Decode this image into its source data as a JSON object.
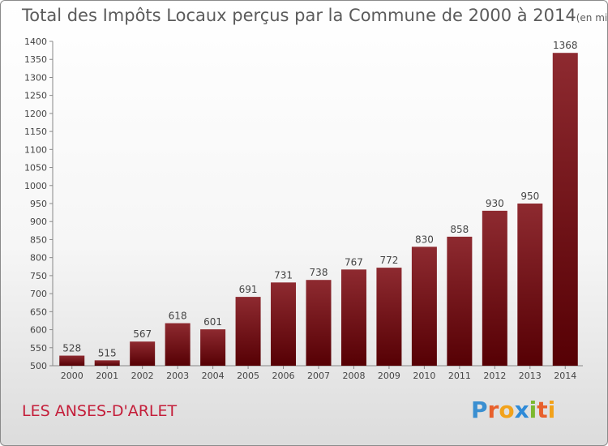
{
  "title": "Total des Impôts Locaux perçus par la Commune de 2000 à 2014",
  "title_unit": "(en milliers d'€)",
  "commune": "LES ANSES-D'ARLET",
  "logo": {
    "text": "Proxiti",
    "letters": [
      {
        "ch": "P",
        "color": "#3a8fd1"
      },
      {
        "ch": "r",
        "color": "#e8602c"
      },
      {
        "ch": "o",
        "color": "#f2a21b"
      },
      {
        "ch": "x",
        "color": "#2f8bd8"
      },
      {
        "ch": "i",
        "color": "#7cb82f"
      },
      {
        "ch": "t",
        "color": "#e8602c"
      },
      {
        "ch": "i",
        "color": "#f2a21b"
      }
    ]
  },
  "chart_data": {
    "type": "bar",
    "title": "Total des Impôts Locaux perçus par la Commune de 2000 à 2014",
    "xlabel": "",
    "ylabel": "",
    "categories": [
      "2000",
      "2001",
      "2002",
      "2003",
      "2004",
      "2005",
      "2006",
      "2007",
      "2008",
      "2009",
      "2010",
      "2011",
      "2012",
      "2013",
      "2014"
    ],
    "values": [
      528,
      515,
      567,
      618,
      601,
      691,
      731,
      738,
      767,
      772,
      830,
      858,
      930,
      950,
      1368
    ],
    "ylim": [
      500,
      1400
    ],
    "ytick_step": 50,
    "grid": false,
    "bar_color": "#7a1418"
  }
}
